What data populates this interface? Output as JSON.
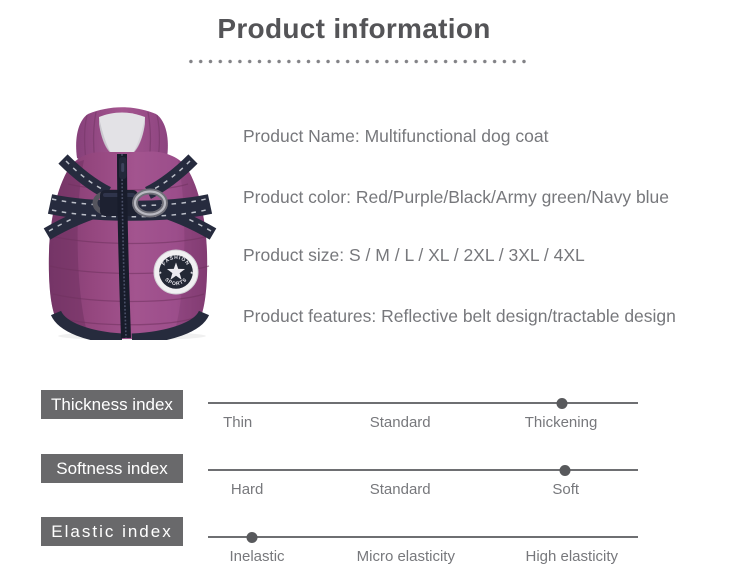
{
  "page": {
    "title": "Product information"
  },
  "product": {
    "badge": {
      "top": "FASHION",
      "bottom": "SPORTS",
      "side_symbol": "★"
    },
    "details": [
      "Product Name: Multifunctional dog coat",
      "Product color: Red/Purple/Black/Army green/Navy blue",
      "Product size: S / M / L / XL / 2XL / 3XL / 4XL",
      "Product features: Reflective belt design/tractable design"
    ]
  },
  "indexes": [
    {
      "label": "Thickness index",
      "options": [
        "Thin",
        "Standard",
        "Thickening"
      ],
      "selected": "Thickening",
      "dot_pct": 82.3
    },
    {
      "label": "Softness index",
      "options": [
        "Hard",
        "Standard",
        "Soft"
      ],
      "selected": "Soft",
      "dot_pct": 83.0
    },
    {
      "label": "Elastic index",
      "options": [
        "Inelastic",
        "Micro elasticity",
        "High elasticity"
      ],
      "selected": "Inelastic",
      "dot_pct": 10.2
    }
  ],
  "colors": {
    "title_text": "#545457",
    "body_text": "#77787c",
    "divider_dot": "#828286",
    "index_box_bg": "#69696b",
    "index_box_text": "#ffffff",
    "scale_line": "#6e6f72",
    "scale_dot": "#58595c",
    "coat_purple": "#9c4e8b",
    "coat_navy": "#252a3c"
  }
}
